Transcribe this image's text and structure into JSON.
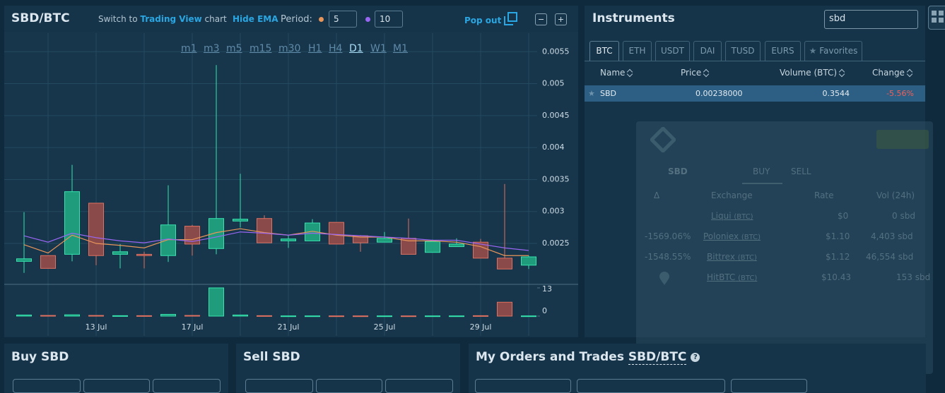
{
  "chart_panel": {
    "title": "SBD/BTC",
    "switch_text": "Switch to",
    "switch_link": "Trading View",
    "switch_suffix": "chart",
    "hide_ema": "Hide EMA",
    "period_label": "Period:",
    "pop_out": "Pop out",
    "intervals": [
      "m1",
      "m3",
      "m5",
      "m15",
      "m30",
      "H1",
      "H4",
      "D1",
      "W1",
      "M1"
    ]
  },
  "chart_data": {
    "type": "candlestick",
    "categories": [
      null,
      null,
      null,
      "13 Jul",
      null,
      null,
      null,
      "17 Jul",
      null,
      null,
      null,
      "21 Jul",
      null,
      null,
      null,
      "25 Jul",
      null,
      null,
      null,
      "29 Jul",
      null,
      null
    ],
    "open": [
      0.00222,
      0.00231,
      0.00233,
      0.00313,
      0.00233,
      0.00233,
      0.00231,
      0.00277,
      0.00242,
      0.00285,
      0.00289,
      0.00254,
      0.00254,
      0.00283,
      0.00262,
      0.00252,
      0.00258,
      0.00236,
      0.00245,
      0.00252,
      0.00227,
      0.00216
    ],
    "high": [
      0.00299,
      0.00231,
      0.00373,
      0.00313,
      0.00249,
      0.00237,
      0.00341,
      0.00279,
      0.00529,
      0.00359,
      0.00294,
      0.00263,
      0.00288,
      0.00283,
      0.00263,
      0.00268,
      0.00289,
      0.00256,
      0.00258,
      0.00257,
      0.00343,
      0.00231
    ],
    "low": [
      0.00204,
      0.00211,
      0.00222,
      0.00216,
      0.00211,
      0.00211,
      0.00221,
      0.00231,
      0.00233,
      0.00275,
      0.00251,
      0.00243,
      0.00254,
      0.00249,
      0.00237,
      0.00252,
      0.00233,
      0.00236,
      0.00245,
      0.00227,
      0.0021,
      0.0021
    ],
    "close": [
      0.00226,
      0.00211,
      0.00331,
      0.00231,
      0.00237,
      0.00231,
      0.00279,
      0.00249,
      0.00289,
      0.00288,
      0.00251,
      0.00257,
      0.00282,
      0.00249,
      0.00251,
      0.00258,
      0.00233,
      0.00253,
      0.00249,
      0.00227,
      0.0021,
      0.00229
    ],
    "up_color": "#1f9c7c",
    "down_color": "#8a4a4a",
    "series": [
      {
        "name": "5",
        "color": "#e8955a",
        "values": [
          0.00248,
          0.00235,
          0.00263,
          0.0025,
          0.00247,
          0.00243,
          0.00256,
          0.00256,
          0.00267,
          0.00273,
          0.00267,
          0.00263,
          0.00269,
          0.00263,
          0.0026,
          0.0026,
          0.00254,
          0.00254,
          0.00252,
          0.00245,
          0.00231,
          0.00231
        ]
      },
      {
        "name": "10",
        "color": "#9866f2",
        "values": [
          0.00262,
          0.00252,
          0.00266,
          0.00259,
          0.00254,
          0.00251,
          0.00257,
          0.00253,
          0.0026,
          0.00268,
          0.00266,
          0.00263,
          0.00266,
          0.00264,
          0.00262,
          0.0026,
          0.00258,
          0.00255,
          0.00255,
          0.00249,
          0.00243,
          0.00239
        ]
      }
    ],
    "ylim": [
      0.00186,
      0.00579
    ],
    "yticks": [
      0.0025,
      0.003,
      0.0035,
      0.004,
      0.0045,
      0.005,
      0.0055
    ],
    "grid": true,
    "volume": {
      "values": [
        0.5,
        0.3,
        0.6,
        0.3,
        0.2,
        0.2,
        0.8,
        0.3,
        13,
        0.5,
        0.2,
        0.1,
        0.1,
        0.1,
        0.1,
        0.1,
        0.1,
        0.1,
        0.1,
        0.2,
        6.4,
        0.1
      ],
      "ylim": [
        0,
        13
      ],
      "yticks": [
        0,
        13
      ]
    }
  },
  "instruments": {
    "title": "Instruments",
    "search": "sbd",
    "tabs": [
      "BTC",
      "ETH",
      "USDT",
      "DAI",
      "TUSD",
      "EURS",
      "Favorites"
    ],
    "columns": [
      "Name",
      "Price",
      "Volume (BTC)",
      "Change"
    ],
    "rows": [
      [
        "SBD",
        "0.00238000",
        "0.3544",
        "-5.56%"
      ]
    ]
  },
  "widget": {
    "coin": "SBD",
    "buy": "BUY",
    "sell": "SELL",
    "columns": [
      "Δ",
      "Exchange",
      "Rate",
      "Vol (24h)"
    ],
    "rows": [
      {
        "exchange": "Liqui",
        "market": "(BTC)",
        "rate": "$0",
        "volume": "0 sbd"
      },
      {
        "delta": "-1569.06%",
        "exchange": "Poloniex",
        "market": "(BTC)",
        "rate": "$1.10",
        "volume": "4,403 sbd"
      },
      {
        "delta": "-1548.55%",
        "exchange": "Bittrex",
        "market": "(BTC)",
        "rate": "$1.12",
        "volume": "46,554 sbd"
      },
      {
        "exchange": "HitBTC",
        "market": "(BTC)",
        "rate": "$10.43",
        "volume": "153 sbd"
      }
    ]
  },
  "bottom": {
    "buy_title": "Buy SBD",
    "sell_title": "Sell SBD",
    "orders_title": "My Orders and Trades",
    "orders_pair": "SBD/BTC"
  }
}
